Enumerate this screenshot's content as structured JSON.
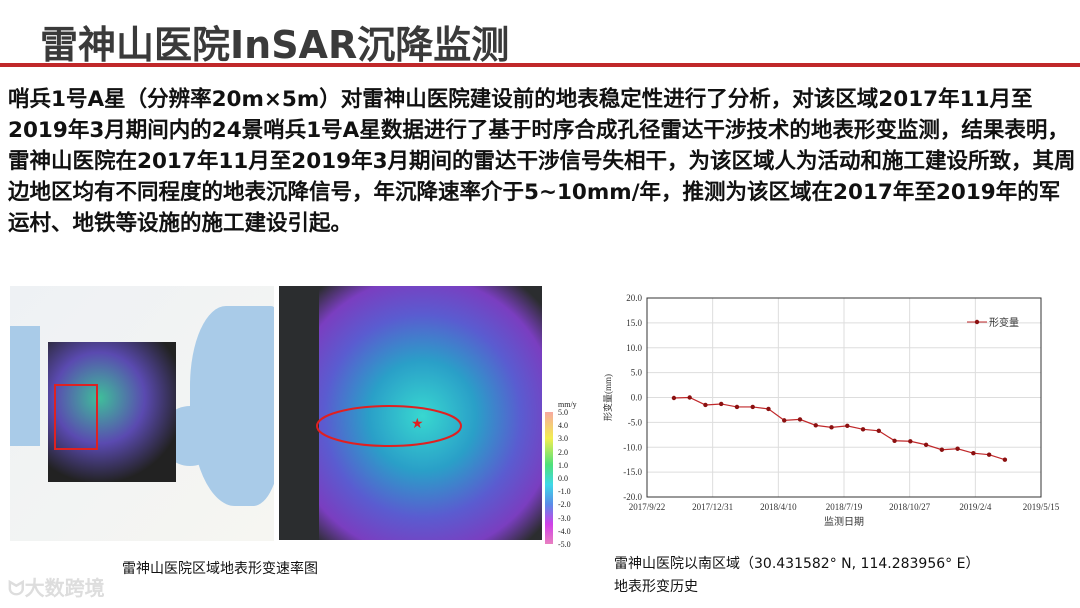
{
  "title": "雷神山医院InSAR沉降监测",
  "body_text": "哨兵1号A星（分辨率20m×5m）对雷神山医院建设前的地表稳定性进行了分析，对该区域2017年11月至2019年3月期间内的24景哨兵1号A星数据进行了基于时序合成孔径雷达干涉技术的地表形变监测，结果表明，雷神山医院在2017年11月至2019年3月期间的雷达干涉信号失相干，为该区域人为活动和施工建设所致，其周边地区均有不同程度的地表沉降信号，年沉降速率介于5~10mm/年，推测为该区域在2017年至2019年的军运村、地铁等设施的施工建设引起。",
  "colorbar": {
    "unit": "mm/y",
    "ticks": [
      "5.0",
      "4.0",
      "3.0",
      "2.0",
      "1.0",
      "0.0",
      "-1.0",
      "-2.0",
      "-3.0",
      "-4.0",
      "-5.0"
    ]
  },
  "caption_left": "雷神山医院区域地表形变速率图",
  "caption_right_line1": "雷神山医院以南区域（30.431582° N, 114.283956° E）",
  "caption_right_line2": "地表形变历史",
  "watermark": "大数跨境",
  "colors": {
    "accent": "#c0282a",
    "series": "#c0282a"
  },
  "chart_data": {
    "type": "line",
    "xlabel": "监测日期",
    "ylabel": "形变量(mm)",
    "ylim": [
      -20,
      20
    ],
    "yticks": [
      "20.0",
      "15.0",
      "10.0",
      "5.0",
      "0.0",
      "-5.0",
      "-10.0",
      "-15.0",
      "-20.0"
    ],
    "xlim": [
      "2017/9/22",
      "2019/5/15"
    ],
    "xticks": [
      "2017/9/22",
      "2017/12/31",
      "2018/4/10",
      "2018/7/19",
      "2018/10/27",
      "2019/2/4",
      "2019/5/15"
    ],
    "grid": true,
    "legend_position": "top-right",
    "series": [
      {
        "name": "形变量",
        "x": [
          "2017/11/2",
          "2017/11/26",
          "2017/12/20",
          "2018/1/13",
          "2018/2/6",
          "2018/3/2",
          "2018/3/26",
          "2018/4/19",
          "2018/5/13",
          "2018/6/6",
          "2018/6/30",
          "2018/7/24",
          "2018/8/17",
          "2018/9/10",
          "2018/10/4",
          "2018/10/28",
          "2018/11/21",
          "2018/12/15",
          "2019/1/8",
          "2019/2/1",
          "2019/2/25",
          "2019/3/21"
        ],
        "values": [
          -0.1,
          0.0,
          -1.5,
          -1.3,
          -1.9,
          -1.9,
          -2.3,
          -4.6,
          -4.4,
          -5.6,
          -6.0,
          -5.7,
          -6.4,
          -6.7,
          -8.7,
          -8.8,
          -9.5,
          -10.5,
          -10.3,
          -11.2,
          -11.5,
          -12.5
        ]
      }
    ]
  }
}
